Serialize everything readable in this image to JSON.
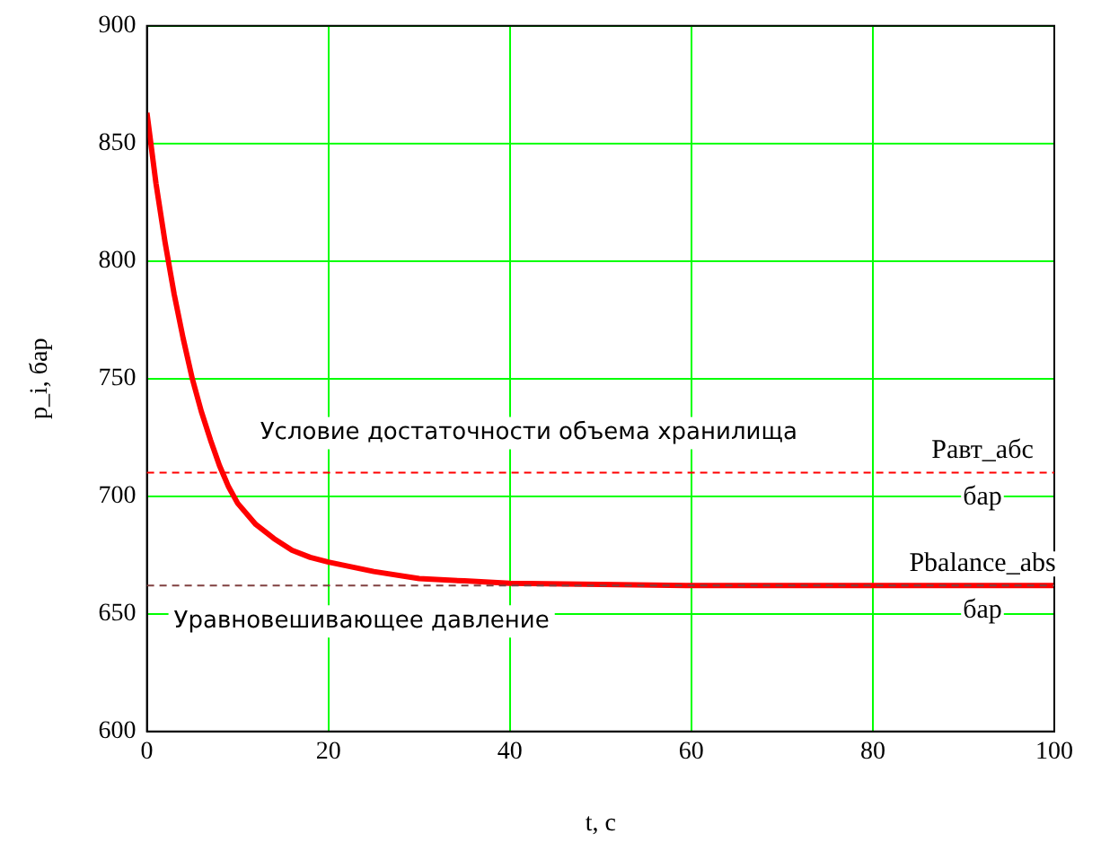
{
  "chart_data": {
    "type": "line",
    "xlabel": "t, c",
    "ylabel": "p_i, бар",
    "x": [
      0,
      1,
      2,
      3,
      4,
      5,
      6,
      7,
      8,
      9,
      10,
      12,
      14,
      16,
      18,
      20,
      25,
      30,
      35,
      40,
      50,
      60,
      80,
      100
    ],
    "series": [
      {
        "color": "#ff0000",
        "values": [
          863,
          833,
          808,
          786,
          767,
          750,
          736,
          724,
          713,
          704,
          697,
          688,
          682,
          677,
          674,
          672,
          668,
          665,
          664,
          663,
          662.5,
          662,
          662,
          662
        ]
      }
    ],
    "xlim": [
      0,
      100
    ],
    "xticks": [
      0,
      20,
      40,
      60,
      80,
      100
    ],
    "ylim": [
      600,
      900
    ],
    "yticks": [
      600,
      650,
      700,
      750,
      800,
      850,
      900
    ],
    "grid": true,
    "legend": false,
    "marker": "none",
    "line_style": "solid",
    "ref_lines": [
      {
        "axis": "y",
        "value": 710,
        "label": "Условие достаточности объема хранилища",
        "color": "#ff0000",
        "line_style": "dashed"
      },
      {
        "axis": "y",
        "value": 662,
        "label": "Уравновешивающее давление",
        "color": "#804040",
        "line_style": "dashed"
      }
    ],
    "annotations": [
      "Pавт_абс",
      "бар",
      "Pbalance_abs",
      "бар"
    ]
  }
}
